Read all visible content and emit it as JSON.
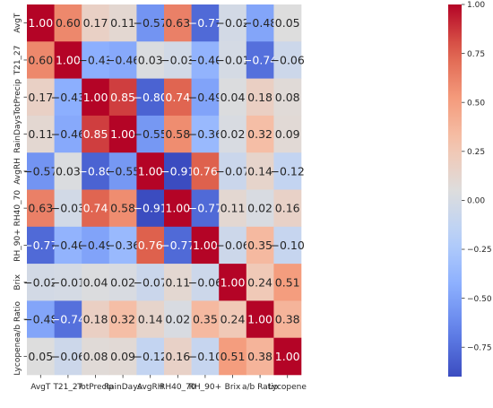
{
  "chart_data": {
    "type": "heatmap",
    "title": "",
    "xlabel": "",
    "ylabel": "",
    "x_labels": [
      "AvgT",
      "T21_27",
      "TotPrecip",
      "RainDays",
      "AvgRH",
      "RH40_70",
      "RH_90+",
      "Brix",
      "a/b Ratio",
      "Lycopene"
    ],
    "y_labels": [
      "AvgT",
      "T21_27",
      "TotPrecip",
      "RainDays",
      "AvgRH",
      "RH40_70",
      "RH_90+",
      "Brix",
      "a/b Ratio",
      "Lycopene"
    ],
    "matrix": [
      [
        1.0,
        0.6,
        0.17,
        0.11,
        -0.57,
        0.63,
        -0.77,
        -0.02,
        -0.48,
        0.05
      ],
      [
        0.6,
        1.0,
        -0.43,
        -0.46,
        0.03,
        -0.03,
        -0.4,
        -0.01,
        -0.74,
        -0.06
      ],
      [
        0.17,
        -0.43,
        1.0,
        0.85,
        -0.8,
        0.74,
        -0.49,
        0.04,
        0.18,
        0.08
      ],
      [
        0.11,
        -0.46,
        0.85,
        1.0,
        -0.55,
        0.58,
        -0.36,
        0.02,
        0.32,
        0.09
      ],
      [
        -0.57,
        0.03,
        -0.8,
        -0.55,
        1.0,
        -0.91,
        0.76,
        -0.07,
        0.14,
        -0.12
      ],
      [
        0.63,
        -0.03,
        0.74,
        0.58,
        -0.91,
        1.0,
        -0.77,
        0.11,
        0.02,
        0.16
      ],
      [
        -0.77,
        -0.4,
        -0.49,
        -0.36,
        0.76,
        -0.77,
        1.0,
        -0.06,
        0.35,
        -0.1
      ],
      [
        -0.02,
        -0.01,
        0.04,
        0.02,
        -0.07,
        0.11,
        -0.06,
        1.0,
        0.24,
        0.51
      ],
      [
        -0.48,
        -0.74,
        0.18,
        0.32,
        0.14,
        0.02,
        0.35,
        0.24,
        1.0,
        0.38
      ],
      [
        0.05,
        -0.06,
        0.08,
        0.09,
        -0.12,
        0.16,
        -0.1,
        0.51,
        0.38,
        1.0
      ]
    ],
    "annotations_format": "2 decimals",
    "colormap": "coolwarm",
    "colorbar": {
      "range": [
        -0.9,
        1.0
      ],
      "ticks": [
        1.0,
        0.75,
        0.5,
        0.25,
        0.0,
        -0.25,
        -0.5,
        -0.75
      ],
      "tick_labels": [
        "1.00",
        "0.75",
        "0.50",
        "0.25",
        "0.00",
        "−0.25",
        "−0.50",
        "−0.75"
      ],
      "placement": "right"
    },
    "grid": false
  }
}
